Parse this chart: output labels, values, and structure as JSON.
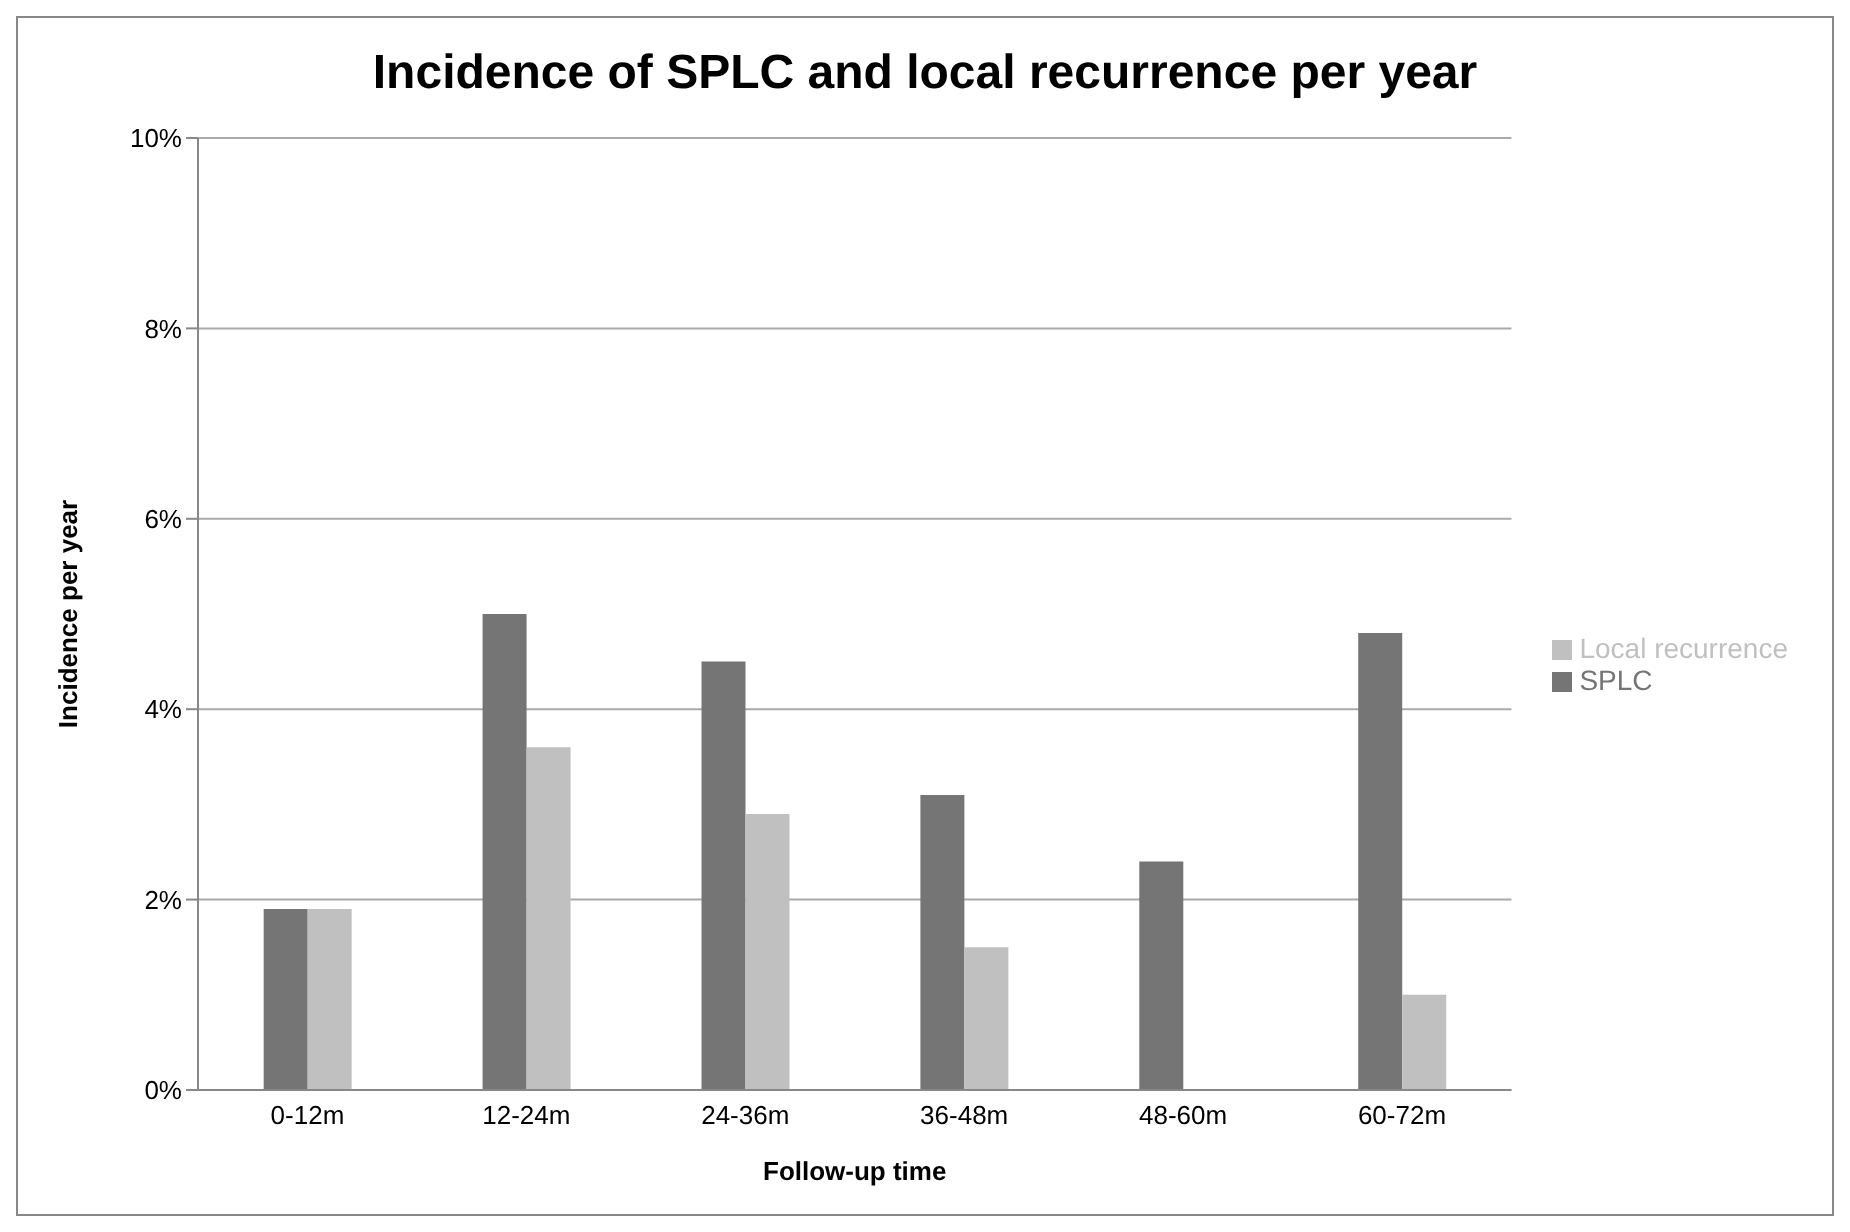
{
  "chart_data": {
    "type": "bar",
    "title": "Incidence of SPLC and local recurrence per year",
    "xlabel": "Follow-up time",
    "ylabel": "Incidence per year",
    "categories": [
      "0-12m",
      "12-24m",
      "24-36m",
      "36-48m",
      "48-60m",
      "60-72m"
    ],
    "series": [
      {
        "name": "SPLC",
        "color": "#757575",
        "values": [
          0.019,
          0.05,
          0.045,
          0.031,
          0.024,
          0.048
        ]
      },
      {
        "name": "Local recurrence",
        "color": "#c0c0c0",
        "values": [
          0.019,
          0.036,
          0.029,
          0.015,
          0,
          0.01
        ]
      }
    ],
    "ylim": [
      0,
      0.1
    ],
    "yticks": [
      {
        "value": 0,
        "label": "0%"
      },
      {
        "value": 0.02,
        "label": "2%"
      },
      {
        "value": 0.04,
        "label": "4%"
      },
      {
        "value": 0.06,
        "label": "6%"
      },
      {
        "value": 0.08,
        "label": "8%"
      },
      {
        "value": 0.1,
        "label": "10%"
      }
    ],
    "grid": "y",
    "legend": "right"
  }
}
